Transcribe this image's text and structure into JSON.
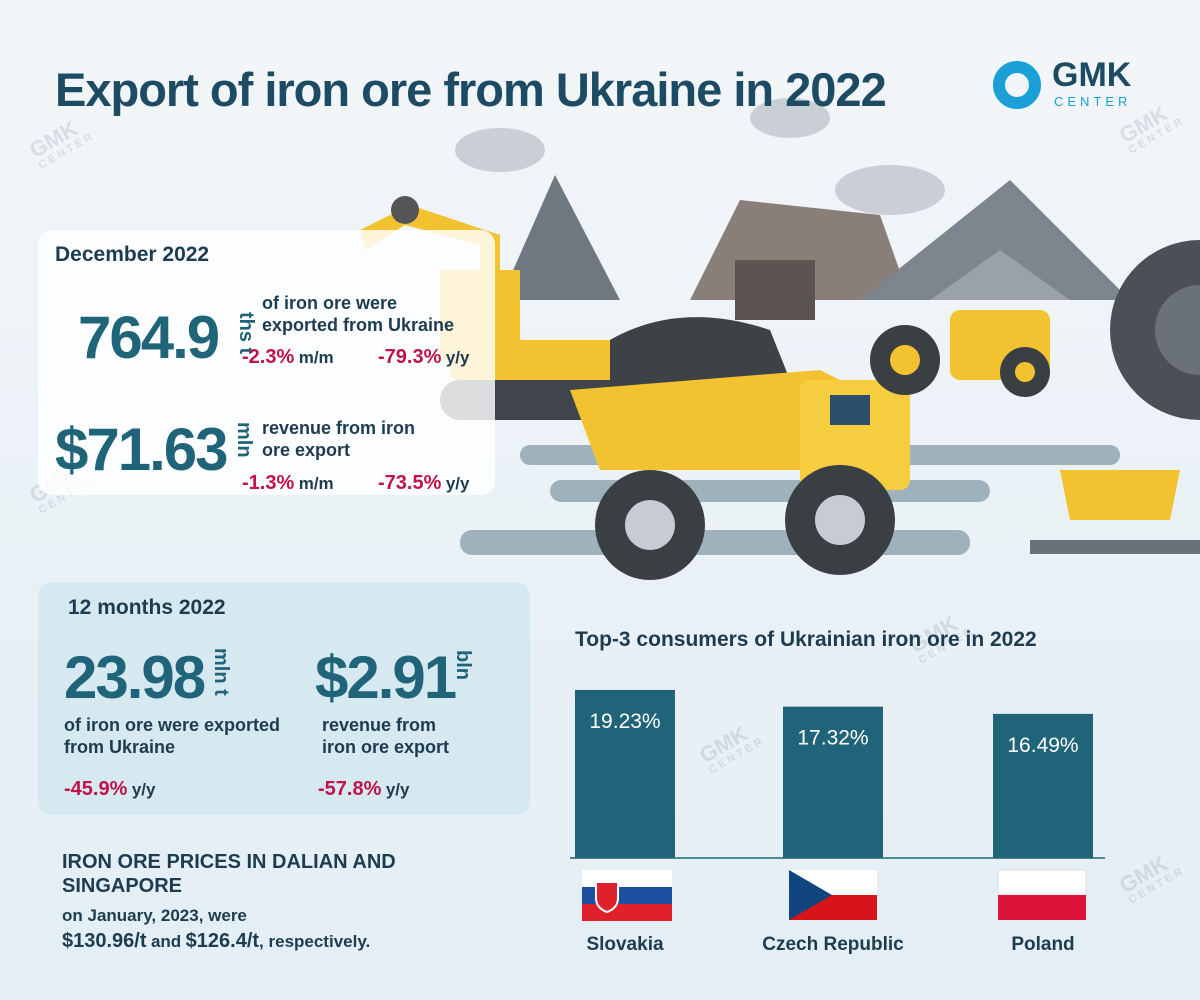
{
  "title": "Export of iron ore from Ukraine in 2022",
  "logo": {
    "brand": "GMK",
    "sub": "CENTER"
  },
  "december": {
    "heading": "December 2022",
    "volume": {
      "value": "764.9",
      "unit": "ths t",
      "text": "of iron ore were exported from Ukraine",
      "mm": "-2.3%",
      "mm_unit": "m/m",
      "yy": "-79.3%",
      "yy_unit": "y/y"
    },
    "revenue": {
      "value": "$71.63",
      "unit": "mln",
      "text": "revenue from iron ore export",
      "mm": "-1.3%",
      "mm_unit": "m/m",
      "yy": "-73.5%",
      "yy_unit": "y/y"
    }
  },
  "year": {
    "heading": "12 months 2022",
    "volume": {
      "value": "23.98",
      "unit": "mln t",
      "text": "of iron ore were exported from Ukraine",
      "yy": "-45.9%",
      "yy_unit": "y/y"
    },
    "revenue": {
      "value": "$2.91",
      "unit": "bln",
      "text": "revenue from iron ore export",
      "yy": "-57.8%",
      "yy_unit": "y/y"
    }
  },
  "prices": {
    "heading": "IRON ORE PRICES IN DALIAN AND SINGAPORE",
    "line1": "on January, 2023, were",
    "dalian": "$130.96/t",
    "and": "and",
    "singapore": "$126.4/t",
    "tail": ", respectively."
  },
  "chart_data": {
    "type": "bar",
    "title": "Top-3 consumers of Ukrainian iron ore in 2022",
    "categories": [
      "Slovakia",
      "Czech Republic",
      "Poland"
    ],
    "values": [
      19.23,
      17.32,
      16.49
    ],
    "value_labels": [
      "19.23%",
      "17.32%",
      "16.49%"
    ],
    "color": "#1f6478"
  }
}
